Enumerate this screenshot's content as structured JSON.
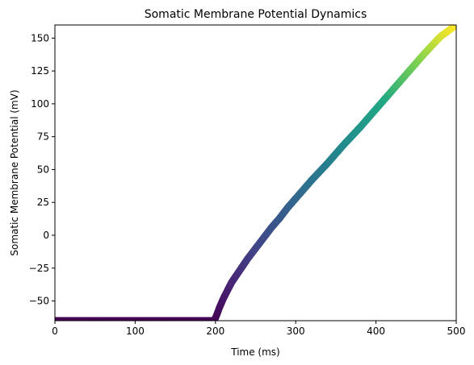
{
  "chart_data": {
    "type": "scatter",
    "title": "Somatic Membrane Potential Dynamics",
    "xlabel": "Time (ms)",
    "ylabel": "Somatic Membrane Potential (mV)",
    "xlim": [
      0,
      500
    ],
    "ylim": [
      -65,
      160
    ],
    "xticks": [
      0,
      100,
      200,
      300,
      400,
      500
    ],
    "yticks": [
      -50,
      -25,
      0,
      25,
      50,
      75,
      100,
      125,
      150
    ],
    "grid": false,
    "legend": "none",
    "colormap": "viridis",
    "color_by": "y",
    "marker_color_range": [
      "#440154",
      "#fde725"
    ],
    "series": [
      {
        "x": [
          0,
          25,
          50,
          75,
          100,
          125,
          150,
          175,
          198,
          200,
          202,
          205,
          210,
          215,
          220,
          230,
          240,
          250,
          260,
          270,
          280,
          290,
          300,
          320,
          340,
          360,
          380,
          400,
          420,
          440,
          460,
          480,
          500
        ],
        "y": [
          -65,
          -65,
          -65,
          -65,
          -65,
          -65,
          -65,
          -65,
          -65,
          -63,
          -60,
          -55,
          -48,
          -42,
          -36,
          -27,
          -18,
          -10,
          -2,
          6,
          13,
          21,
          28,
          42,
          55,
          69,
          82,
          96,
          110,
          124,
          138,
          151,
          160
        ]
      }
    ]
  }
}
